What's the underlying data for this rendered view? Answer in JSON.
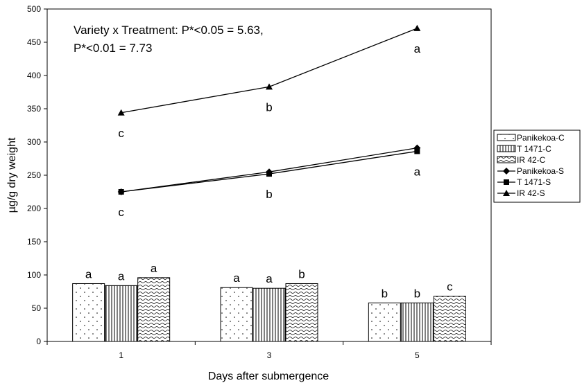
{
  "chart_data": {
    "type": "bar+line",
    "title": "",
    "xlabel": "Days after submergence",
    "ylabel": "µg/g dry weight",
    "ylim": [
      0,
      500
    ],
    "yticks": [
      0,
      50,
      100,
      150,
      200,
      250,
      300,
      350,
      400,
      450,
      500
    ],
    "categories": [
      "1",
      "3",
      "5"
    ],
    "annotation": [
      "Variety x Treatment: P*<0.05 = 5.63,",
      "P*<0.01 = 7.73"
    ],
    "legend_position": "right",
    "bar_series": [
      {
        "name": "Panikekoa-C",
        "values": [
          87,
          81,
          58
        ],
        "letters": [
          "a",
          "a",
          "b"
        ],
        "pattern": "dots"
      },
      {
        "name": "T 1471-C",
        "values": [
          84,
          80,
          58
        ],
        "letters": [
          "a",
          "a",
          "b"
        ],
        "pattern": "vlines"
      },
      {
        "name": "IR 42-C",
        "values": [
          96,
          87,
          68
        ],
        "letters": [
          "a",
          "b",
          "c"
        ],
        "pattern": "waves"
      }
    ],
    "line_series": [
      {
        "name": "Panikekoa-S",
        "values": [
          225,
          255,
          291
        ],
        "marker": "diamond"
      },
      {
        "name": "T 1471-S",
        "values": [
          225,
          252,
          286
        ],
        "marker": "square"
      },
      {
        "name": "IR 42-S",
        "values": [
          344,
          383,
          471
        ],
        "marker": "triangle"
      }
    ],
    "line_letters": [
      {
        "series": "IR 42-S",
        "letters": [
          "c",
          "b",
          "a"
        ]
      },
      {
        "series": "Panikekoa-S / T 1471-S",
        "letters": [
          "c",
          "b",
          "a"
        ]
      }
    ]
  }
}
